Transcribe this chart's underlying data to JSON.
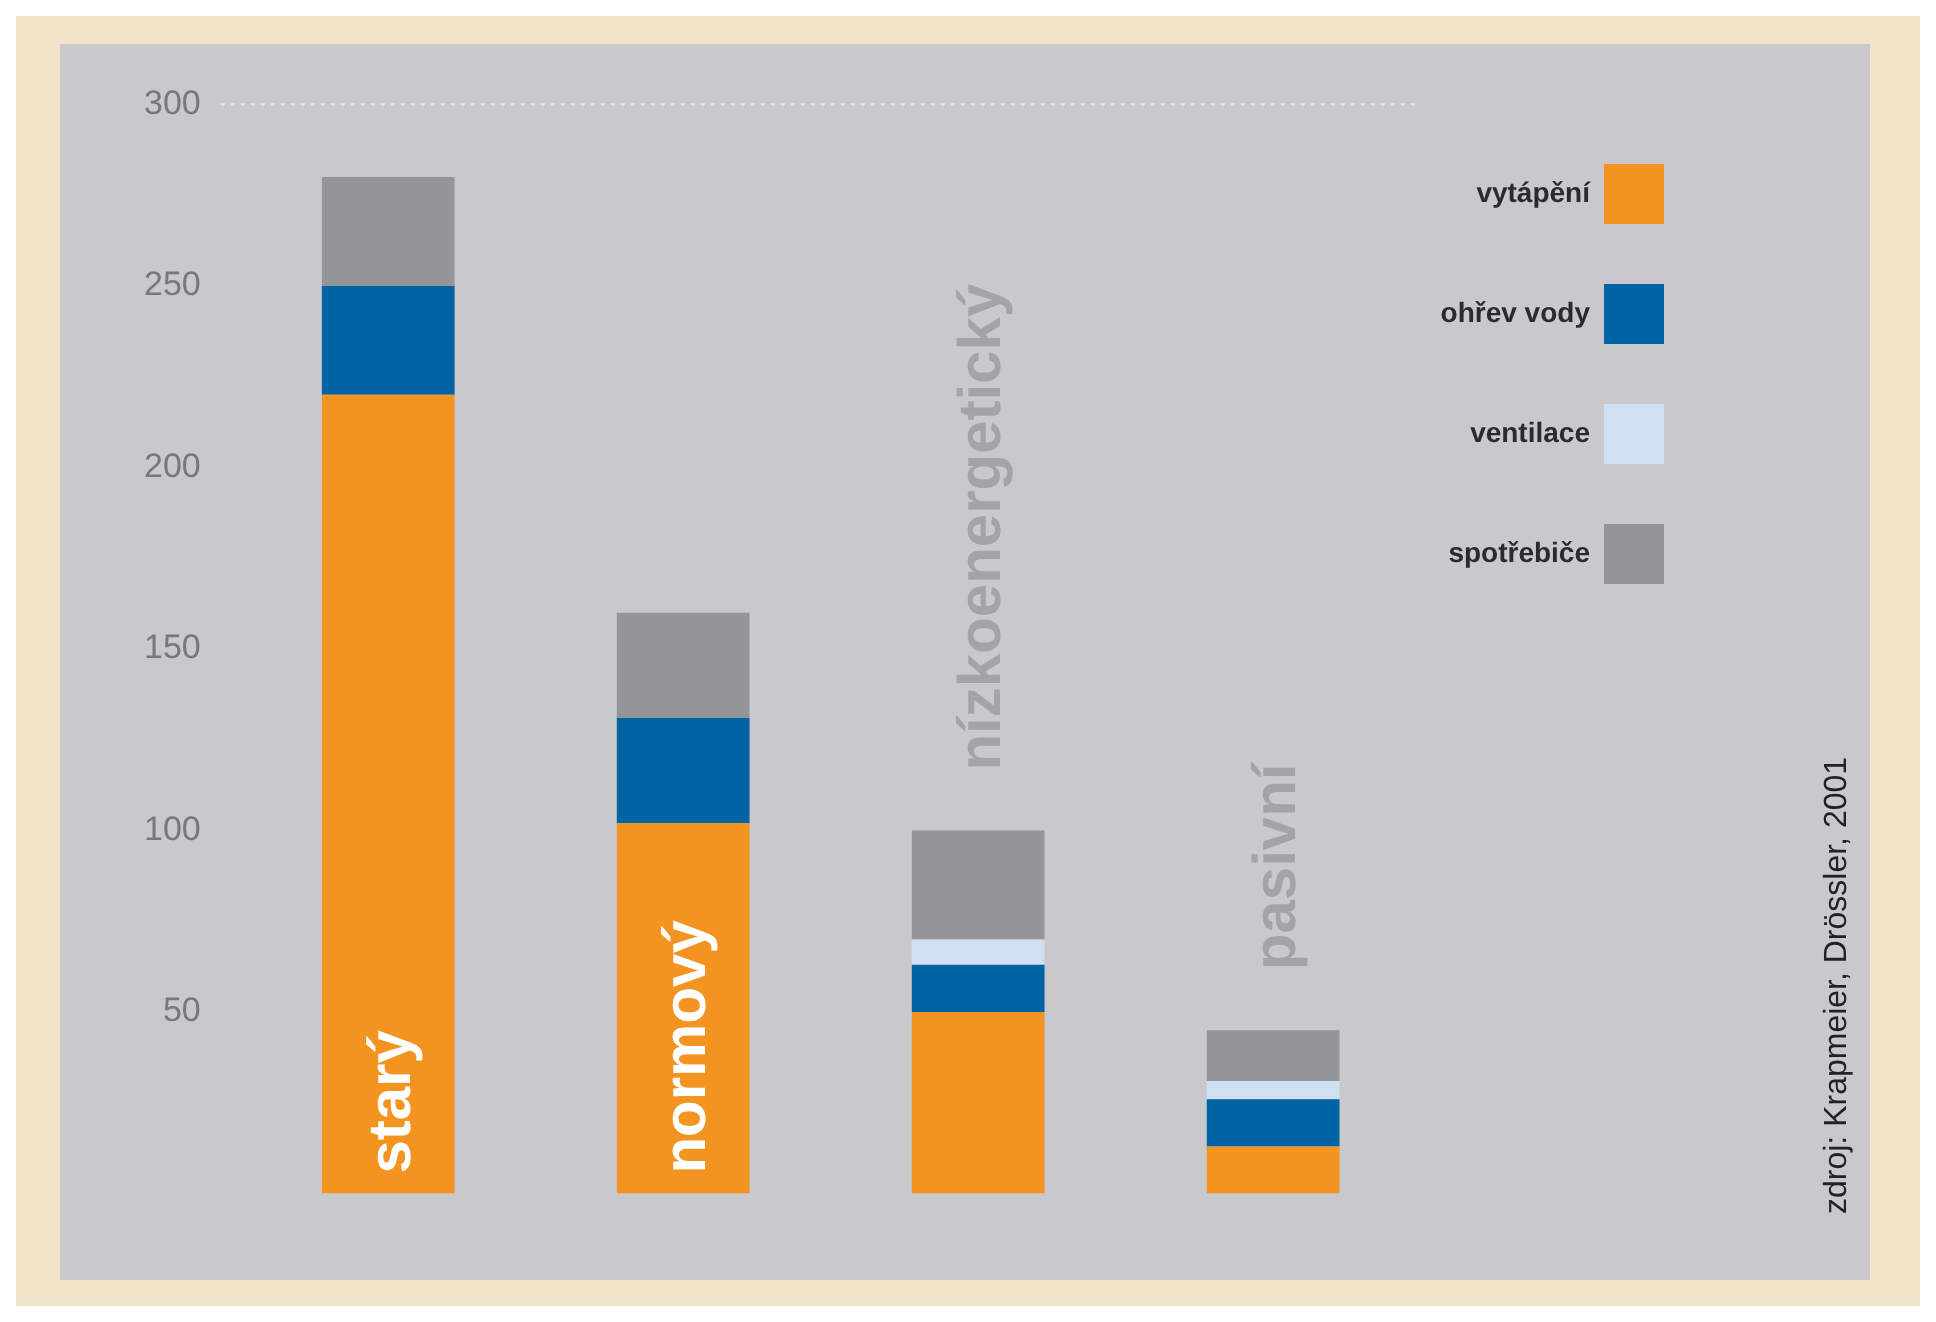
{
  "chart_data": {
    "type": "bar",
    "stacked": true,
    "categories": [
      "starý",
      "normový",
      "nízkoenergetický",
      "pasivní"
    ],
    "series": [
      {
        "name": "vytápění",
        "color": "#f39420",
        "values": [
          220,
          102,
          50,
          13
        ]
      },
      {
        "name": "ohřev vody",
        "color": "#0063a4",
        "values": [
          30,
          29,
          13,
          13
        ]
      },
      {
        "name": "ventilace",
        "color": "#cfe0f3",
        "values": [
          0,
          0,
          7,
          5
        ]
      },
      {
        "name": "spotřebiče",
        "color": "#939598",
        "values": [
          30,
          29,
          30,
          14
        ]
      }
    ],
    "ylim": [
      0,
      300
    ],
    "yticks": [
      50,
      100,
      150,
      200,
      250,
      300
    ],
    "grid": false,
    "legend": "top right",
    "ref_lines": [
      {
        "axis": "y",
        "value": 300,
        "color": "#e6e6e8",
        "line_style": "dotted"
      }
    ],
    "annotations": [
      "zdroj: Krapmeier, Drössler, 2001"
    ]
  }
}
